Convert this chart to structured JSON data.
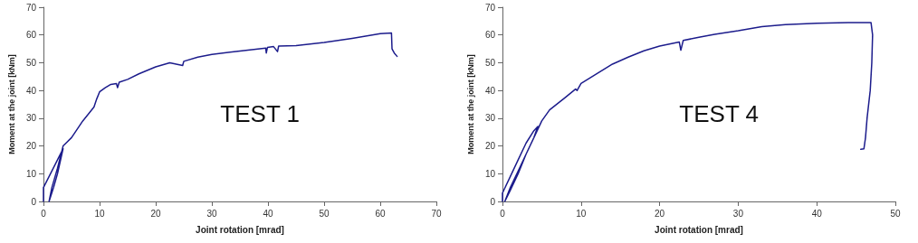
{
  "chart_data": [
    {
      "type": "line",
      "xlabel": "Joint rotation [mrad]",
      "ylabel": "Moment at the joint [kNm]",
      "annotations": [
        "TEST 1"
      ],
      "xlim": [
        0,
        70
      ],
      "xticks": [
        0,
        10,
        20,
        30,
        40,
        50,
        60,
        70
      ],
      "ylim": [
        0,
        70
      ],
      "yticks": [
        0,
        10,
        20,
        30,
        40,
        50,
        60,
        70
      ],
      "grid": false,
      "marker": "none",
      "line_style": "solid",
      "series": [
        {
          "color": "#1c1c8c",
          "x": [
            0,
            0,
            1,
            2,
            3.5,
            2.5,
            1.8,
            1,
            1.5,
            2.5,
            3.5,
            4,
            5,
            6,
            7,
            8,
            9,
            9.5,
            10,
            11,
            12,
            13,
            13.2,
            13.5,
            15,
            17,
            20,
            22.5,
            24.8,
            25,
            27.5,
            30,
            35,
            39.6,
            39.7,
            39.9,
            41,
            41.7,
            41.9,
            45,
            50,
            55,
            60,
            62,
            62.1,
            62.5,
            63
          ],
          "values": [
            0,
            5,
            9,
            13,
            19,
            10,
            5,
            0,
            5,
            12,
            20,
            21,
            23,
            26,
            29,
            31.5,
            34,
            37,
            39.5,
            41,
            42.2,
            42.5,
            41,
            43,
            44,
            46,
            48.5,
            50,
            49,
            50.5,
            52,
            53,
            54.2,
            55.3,
            53.5,
            55.5,
            55.8,
            54,
            56,
            56.2,
            57.3,
            58.8,
            60.5,
            60.7,
            55,
            53.5,
            52.3
          ]
        }
      ]
    },
    {
      "type": "line",
      "xlabel": "Joint rotation [mrad]",
      "ylabel": "Moment at the joint [kNm]",
      "annotations": [
        "TEST 4"
      ],
      "xlim": [
        0,
        50
      ],
      "xticks": [
        0,
        10,
        20,
        30,
        40,
        50
      ],
      "ylim": [
        0,
        70
      ],
      "yticks": [
        0,
        10,
        20,
        30,
        40,
        50,
        60,
        70
      ],
      "grid": false,
      "marker": "none",
      "line_style": "solid",
      "series": [
        {
          "color": "#1c1c8c",
          "x": [
            0,
            0,
            1,
            2,
            3,
            4,
            4.5,
            4,
            3,
            2,
            1,
            0.3,
            1,
            2,
            3,
            4,
            5,
            6,
            8,
            9.3,
            9.5,
            10,
            12,
            14,
            16,
            18,
            20,
            22.5,
            22.7,
            23,
            25,
            27,
            30,
            33,
            36,
            40,
            44,
            46.9,
            47.1,
            47,
            46.8,
            46.4,
            46.2,
            46,
            45.6
          ],
          "values": [
            0,
            3,
            9,
            15,
            21,
            25.5,
            27,
            23,
            17,
            11,
            5,
            0,
            4,
            10,
            17,
            23,
            29,
            33,
            37.5,
            40.5,
            40,
            42.5,
            46,
            49.5,
            52,
            54.3,
            56,
            57.5,
            54.5,
            58,
            59.2,
            60.2,
            61.5,
            63,
            63.7,
            64.2,
            64.5,
            64.5,
            60,
            50,
            40,
            30,
            23,
            19,
            18.8
          ]
        }
      ]
    }
  ]
}
